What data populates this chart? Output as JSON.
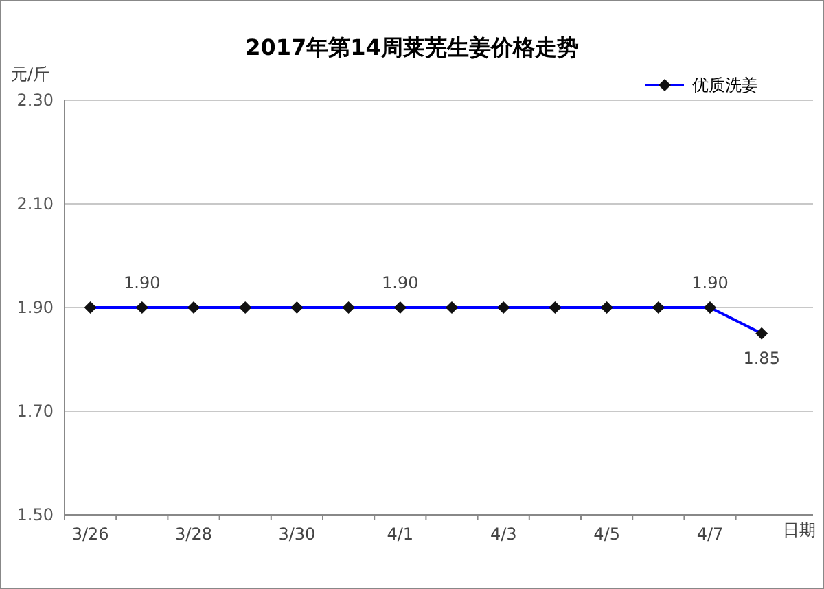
{
  "chart_data": {
    "type": "line",
    "title": "2017年第14周莱芜生姜价格走势",
    "ylabel": "元/斤",
    "xlabel": "日期",
    "categories": [
      "3/26",
      null,
      "3/28",
      null,
      "3/30",
      null,
      "4/1",
      null,
      "4/3",
      null,
      "4/5",
      null,
      "4/7",
      null
    ],
    "series": [
      {
        "name": "优质洗姜",
        "color": "#0000ff",
        "values": [
          1.9,
          1.9,
          1.9,
          1.9,
          1.9,
          1.9,
          1.9,
          1.9,
          1.9,
          1.9,
          1.9,
          1.9,
          1.9,
          1.85
        ],
        "value_labels": [
          null,
          "1.90",
          null,
          null,
          null,
          null,
          "1.90",
          null,
          null,
          null,
          null,
          null,
          "1.90",
          "1.85"
        ]
      }
    ],
    "ylim": [
      1.5,
      2.3
    ],
    "yticks": [
      {
        "value": 1.5,
        "label": "1.50"
      },
      {
        "value": 1.7,
        "label": "1.70"
      },
      {
        "value": 1.9,
        "label": "1.90"
      },
      {
        "value": 2.1,
        "label": "2.10"
      },
      {
        "value": 2.3,
        "label": "2.30"
      }
    ],
    "grid": "y",
    "legend": "top right",
    "marker": "diamond",
    "line_style": "solid"
  }
}
